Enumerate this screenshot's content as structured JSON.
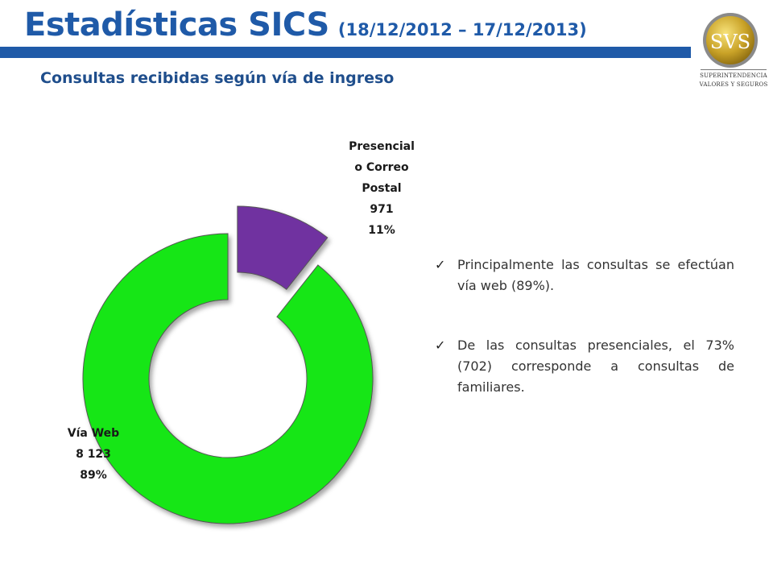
{
  "header": {
    "title": "Estadísticas SICS",
    "date_range": "(18/12/2012 – 17/12/2013)",
    "subtitle": "Consultas recibidas según vía de ingreso"
  },
  "logo": {
    "mark": "SVS",
    "line1": "SUPERINTENDENCIA",
    "line2": "VALORES Y SEGUROS"
  },
  "chart_data": {
    "type": "pie",
    "style": "doughnut",
    "categories": [
      "Presencial o Correo Postal",
      "Vía Web"
    ],
    "values": [
      971,
      8123
    ],
    "percent_labels": [
      "11%",
      "89%"
    ],
    "value_labels": [
      "971",
      "8 123"
    ],
    "label_lines": [
      [
        "Presencial",
        "o Correo",
        "Postal"
      ],
      [
        "Vía Web"
      ]
    ],
    "colors": [
      "#7030a0",
      "#16e616"
    ],
    "exploded": [
      true,
      false
    ]
  },
  "bullets": [
    "Principalmente las consultas se efectúan vía web (89%).",
    "De las consultas presenciales, el 73% (702) corresponde a consultas de familiares."
  ],
  "icons": {
    "bullet": "check-icon"
  }
}
